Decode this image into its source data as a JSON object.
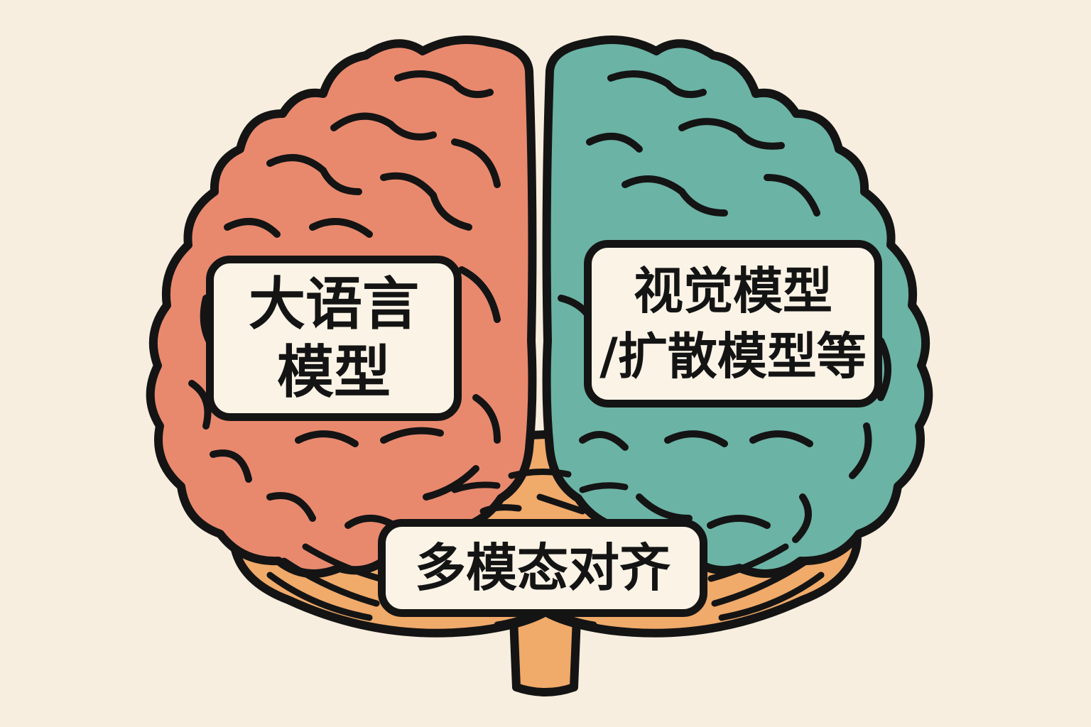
{
  "colors": {
    "background": "#f7eedf",
    "left_hemisphere": "#e8896e",
    "right_hemisphere": "#6bb3a5",
    "cerebellum": "#f0aa6a",
    "outline": "#141414",
    "label_fill": "#faf3e6"
  },
  "labels": {
    "left": [
      "大语言",
      "模型"
    ],
    "right": [
      "视觉模型",
      "/扩散模型等"
    ],
    "bottom": "多模态对齐"
  }
}
